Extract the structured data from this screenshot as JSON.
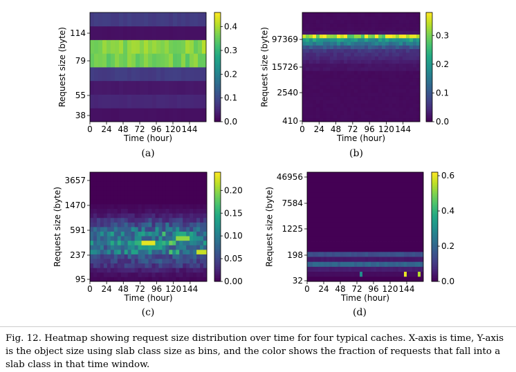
{
  "chart_data": [
    {
      "type": "heatmap",
      "panel": "(a)",
      "xlabel": "Time (hour)",
      "ylabel": "Request size (byte)",
      "x_ticks": [
        "0",
        "24",
        "48",
        "72",
        "96",
        "120",
        "144"
      ],
      "y_ticks": [
        "38",
        "55",
        "79",
        "114"
      ],
      "colorbar_ticks": [
        "0.0",
        "0.1",
        "0.2",
        "0.3",
        "0.4"
      ],
      "colorbar_range": [
        0,
        0.46
      ],
      "x_range": [
        0,
        168
      ],
      "row_values": [
        0.02,
        0.05,
        0.03,
        0.08,
        0.36,
        0.38,
        0.02,
        0.08
      ]
    },
    {
      "type": "heatmap",
      "panel": "(b)",
      "xlabel": "Time (hour)",
      "ylabel": "Request size (byte)",
      "x_ticks": [
        "0",
        "24",
        "48",
        "72",
        "96",
        "120",
        "144"
      ],
      "y_ticks": [
        "410",
        "2540",
        "15726",
        "97369"
      ],
      "colorbar_ticks": [
        "0.0",
        "0.1",
        "0.2",
        "0.3"
      ],
      "colorbar_range": [
        0,
        0.38
      ],
      "x_range": [
        0,
        168
      ],
      "row_values": [
        0.01,
        0.01,
        0.01,
        0.01,
        0.01,
        0.01,
        0.01,
        0.01,
        0.01,
        0.01,
        0.01,
        0.01,
        0.01,
        0.01,
        0.02,
        0.02,
        0.03,
        0.04,
        0.05,
        0.06,
        0.1,
        0.16,
        0.2,
        0.33,
        0.02,
        0.01,
        0.01,
        0.01,
        0.01,
        0.01
      ]
    },
    {
      "type": "heatmap",
      "panel": "(c)",
      "xlabel": "Time (hour)",
      "ylabel": "Request size (byte)",
      "x_ticks": [
        "0",
        "24",
        "48",
        "72",
        "96",
        "120",
        "144"
      ],
      "y_ticks": [
        "95",
        "237",
        "591",
        "1470",
        "3657"
      ],
      "colorbar_ticks": [
        "0.00",
        "0.05",
        "0.10",
        "0.15",
        "0.20"
      ],
      "colorbar_range": [
        0,
        0.24
      ],
      "x_range": [
        0,
        168
      ],
      "row_values": [
        0.005,
        0.01,
        0.02,
        0.04,
        0.05,
        0.06,
        0.11,
        0.09,
        0.12,
        0.1,
        0.11,
        0.08,
        0.06,
        0.04,
        0.02,
        0.01,
        0.005,
        0.0,
        0.0,
        0.0,
        0.0,
        0.0,
        0.0,
        0.0
      ]
    },
    {
      "type": "heatmap",
      "panel": "(d)",
      "xlabel": "Time (hour)",
      "ylabel": "Request size (byte)",
      "x_ticks": [
        "0",
        "24",
        "48",
        "72",
        "96",
        "120",
        "144"
      ],
      "y_ticks": [
        "32",
        "198",
        "1225",
        "7584",
        "46956"
      ],
      "colorbar_ticks": [
        "0.0",
        "0.2",
        "0.4",
        "0.6"
      ],
      "colorbar_range": [
        0,
        0.62
      ],
      "x_range": [
        0,
        168
      ],
      "row_values": [
        0.0,
        0.02,
        0.05,
        0.2,
        0.04,
        0.15,
        0.0,
        0.0,
        0.0,
        0.0,
        0.0,
        0.0,
        0.0,
        0.0,
        0.0,
        0.0,
        0.0,
        0.0,
        0.0,
        0.0,
        0.0,
        0.0
      ]
    }
  ],
  "subfigure_labels": [
    "(a)",
    "(b)",
    "(c)",
    "(d)"
  ],
  "caption": "Fig. 12.  Heatmap showing request size distribution over time for four typical caches. X-axis is time, Y-axis is the object size using slab class size as bins, and the color shows the fraction of requests that fall into a slab class in that time window."
}
